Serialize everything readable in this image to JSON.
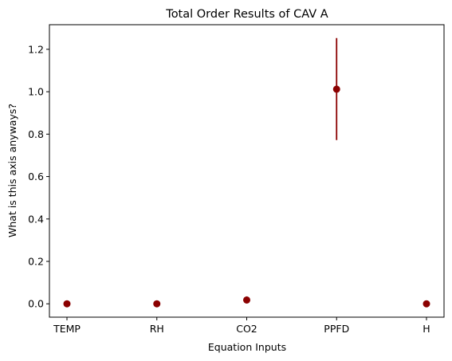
{
  "chart_data": {
    "type": "scatter",
    "title": "Total Order Results of CAV A",
    "xlabel": "Equation Inputs",
    "ylabel": "What is this axis anyways?",
    "categories": [
      "TEMP",
      "RH",
      "CO2",
      "PPFD",
      "H"
    ],
    "values": [
      0.0,
      0.0,
      0.018,
      1.012,
      0.0
    ],
    "error_low": [
      0.0,
      0.0,
      0.005,
      0.772,
      0.0
    ],
    "error_high": [
      0.0,
      0.0,
      0.035,
      1.253,
      0.0
    ],
    "yticks": [
      "0.0",
      "0.2",
      "0.4",
      "0.6",
      "0.8",
      "1.0",
      "1.2"
    ],
    "ylim": [
      -0.063,
      1.316
    ],
    "grid": false,
    "legend": "none",
    "marker_color": "#8b0000",
    "axis_color": "#000000"
  }
}
